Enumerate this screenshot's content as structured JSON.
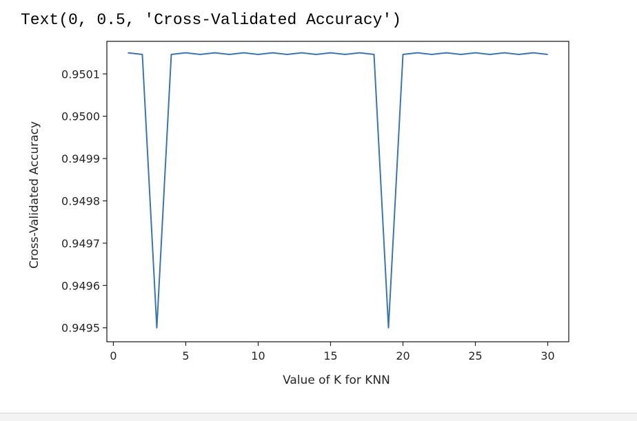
{
  "output_text": "Text(0, 0.5, 'Cross-Validated Accuracy')",
  "chart_data": {
    "type": "line",
    "title": "",
    "xlabel": "Value of K for KNN",
    "ylabel": "Cross-Validated Accuracy",
    "x": [
      1,
      2,
      3,
      4,
      5,
      6,
      7,
      8,
      9,
      10,
      11,
      12,
      13,
      14,
      15,
      16,
      17,
      18,
      19,
      20,
      21,
      22,
      23,
      24,
      25,
      26,
      27,
      28,
      29,
      30
    ],
    "series": [
      {
        "color": "#3b75af",
        "values": [
          0.95015,
          0.950146,
          0.9495,
          0.950146,
          0.95015,
          0.950146,
          0.95015,
          0.950146,
          0.95015,
          0.950146,
          0.95015,
          0.950146,
          0.95015,
          0.950146,
          0.95015,
          0.950146,
          0.95015,
          0.950146,
          0.9495,
          0.950146,
          0.95015,
          0.950146,
          0.95015,
          0.950146,
          0.95015,
          0.950146,
          0.95015,
          0.950146,
          0.95015,
          0.950146
        ]
      }
    ],
    "xlim": [
      -0.45,
      31.45
    ],
    "ylim": [
      0.949467,
      0.950177
    ],
    "xticks": [
      0,
      5,
      10,
      15,
      20,
      25,
      30
    ],
    "xtick_labels": [
      "0",
      "5",
      "10",
      "15",
      "20",
      "25",
      "30"
    ],
    "yticks": [
      0.9495,
      0.9496,
      0.9497,
      0.9498,
      0.9499,
      0.95,
      0.9501
    ],
    "ytick_labels": [
      "0.9495",
      "0.9496",
      "0.9497",
      "0.9498",
      "0.9499",
      "0.9500",
      "0.9501"
    ],
    "grid": false
  }
}
